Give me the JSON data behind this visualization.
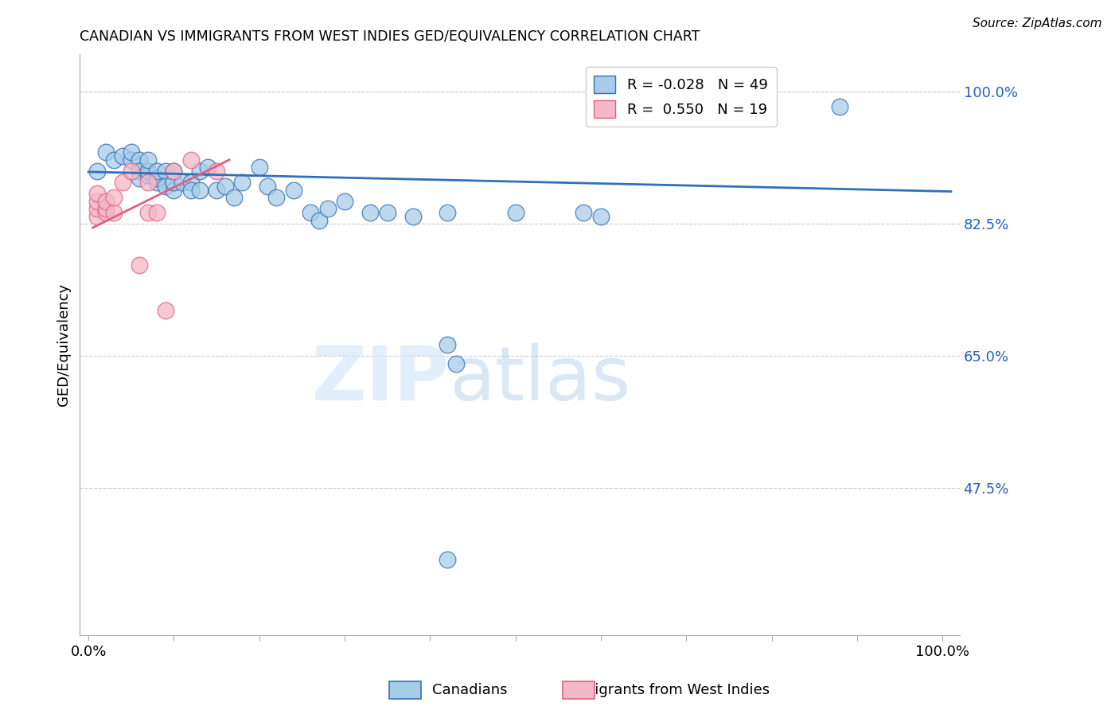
{
  "title": "CANADIAN VS IMMIGRANTS FROM WEST INDIES GED/EQUIVALENCY CORRELATION CHART",
  "source": "Source: ZipAtlas.com",
  "ylabel": "GED/Equivalency",
  "ytick_vals": [
    1.0,
    0.825,
    0.65,
    0.475
  ],
  "ytick_labels": [
    "100.0%",
    "82.5%",
    "65.0%",
    "47.5%"
  ],
  "ymin": 0.28,
  "ymax": 1.05,
  "xmin": -0.01,
  "xmax": 1.02,
  "legend_r_canadian": "-0.028",
  "legend_n_canadian": "49",
  "legend_r_westindies": "0.550",
  "legend_n_westindies": "19",
  "canadian_color": "#a8cce8",
  "westindies_color": "#f4b8c8",
  "trendline_canadian_color": "#3070b8",
  "trendline_westindies_color": "#e06080",
  "watermark_zip": "ZIP",
  "watermark_atlas": "atlas",
  "canadians_x": [
    0.01,
    0.02,
    0.03,
    0.04,
    0.05,
    0.05,
    0.06,
    0.06,
    0.06,
    0.07,
    0.07,
    0.07,
    0.08,
    0.08,
    0.08,
    0.09,
    0.09,
    0.1,
    0.1,
    0.1,
    0.11,
    0.12,
    0.12,
    0.13,
    0.13,
    0.14,
    0.15,
    0.16,
    0.17,
    0.18,
    0.2,
    0.21,
    0.22,
    0.24,
    0.26,
    0.27,
    0.28,
    0.3,
    0.33,
    0.35,
    0.38,
    0.42,
    0.42,
    0.43,
    0.5,
    0.58,
    0.6,
    0.88,
    0.42
  ],
  "canadians_y": [
    0.895,
    0.92,
    0.91,
    0.915,
    0.91,
    0.92,
    0.91,
    0.895,
    0.885,
    0.89,
    0.895,
    0.91,
    0.88,
    0.885,
    0.895,
    0.895,
    0.875,
    0.87,
    0.88,
    0.895,
    0.88,
    0.88,
    0.87,
    0.87,
    0.895,
    0.9,
    0.87,
    0.875,
    0.86,
    0.88,
    0.9,
    0.875,
    0.86,
    0.87,
    0.84,
    0.83,
    0.845,
    0.855,
    0.84,
    0.84,
    0.835,
    0.84,
    0.665,
    0.64,
    0.84,
    0.84,
    0.835,
    0.98,
    0.38
  ],
  "westindies_x": [
    0.01,
    0.01,
    0.01,
    0.01,
    0.02,
    0.02,
    0.02,
    0.03,
    0.03,
    0.04,
    0.05,
    0.06,
    0.07,
    0.07,
    0.08,
    0.09,
    0.1,
    0.12,
    0.15
  ],
  "westindies_y": [
    0.835,
    0.845,
    0.855,
    0.865,
    0.84,
    0.845,
    0.855,
    0.84,
    0.86,
    0.88,
    0.895,
    0.77,
    0.84,
    0.88,
    0.84,
    0.71,
    0.895,
    0.91,
    0.895
  ],
  "trendline_c_x0": 0.0,
  "trendline_c_x1": 1.01,
  "trendline_c_y0": 0.894,
  "trendline_c_y1": 0.868,
  "trendline_w_x0": 0.005,
  "trendline_w_x1": 0.165,
  "trendline_w_y0": 0.82,
  "trendline_w_y1": 0.91
}
